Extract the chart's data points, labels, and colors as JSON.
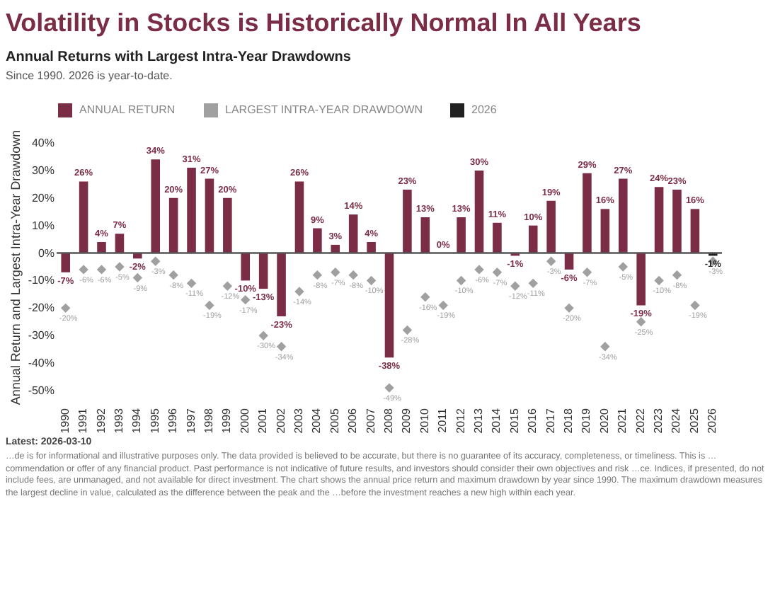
{
  "chart_data": {
    "type": "bar",
    "title": "Volatility in Stocks is Historically Normal In All Years",
    "subtitle": "Annual Returns with Largest Intra-Year Drawdowns",
    "ylabel": "Annual Return and Largest Intra-Year Drawdown",
    "annotations": [
      "Since 1990. 2026 is year-to-date.",
      "Latest: 2026-03-10",
      "…de is for informational and illustrative purposes only. The data provided is believed to be accurate, but there is no guarantee of its accuracy, completeness, or timeliness. This is …commendation or offer of any financial product. Past performance is not indicative of future results, and investors should consider their own objectives and risk …ce. Indices, if presented, do not include fees, are unmanaged, and not available for direct investment. The chart shows the annual price return and maximum drawdown by year since 1990. The maximum drawdown measures the largest decline in value, calculated as the difference between the peak and the …before the investment reaches a new high within each year."
    ],
    "categories": [
      "1990",
      "1991",
      "1992",
      "1993",
      "1994",
      "1995",
      "1996",
      "1997",
      "1998",
      "1999",
      "2000",
      "2001",
      "2002",
      "2003",
      "2004",
      "2005",
      "2006",
      "2007",
      "2008",
      "2009",
      "2010",
      "2011",
      "2012",
      "2013",
      "2014",
      "2015",
      "2016",
      "2017",
      "2018",
      "2019",
      "2020",
      "2021",
      "2022",
      "2023",
      "2024",
      "2025",
      "2026"
    ],
    "series": [
      {
        "name": "ANNUAL RETURN",
        "color": "#7b2d45",
        "values": [
          -7,
          26,
          4,
          7,
          -2,
          34,
          20,
          31,
          27,
          20,
          -10,
          -13,
          -23,
          26,
          9,
          3,
          14,
          4,
          -38,
          23,
          13,
          0,
          13,
          30,
          11,
          -1,
          10,
          19,
          -6,
          29,
          16,
          27,
          -19,
          24,
          23,
          16,
          null
        ],
        "value_labels": [
          "-7%",
          "26%",
          "4%",
          "7%",
          "-2%",
          "34%",
          "20%",
          "31%",
          "27%",
          "20%",
          "-10%",
          "-13%",
          "-23%",
          "26%",
          "9%",
          "3%",
          "14%",
          "4%",
          "-38%",
          "23%",
          "13%",
          "0%",
          "13%",
          "30%",
          "11%",
          "-1%",
          "10%",
          "19%",
          "-6%",
          "29%",
          "16%",
          "27%",
          "-19%",
          "24%",
          "23%",
          "16%",
          null
        ]
      },
      {
        "name": "LARGEST INTRA-YEAR DRAWDOWN",
        "type": "scatter",
        "color": "#a0a0a0",
        "values": [
          -20,
          -6,
          -6,
          -5,
          -9,
          -3,
          -8,
          -11,
          -19,
          -12,
          -17,
          -30,
          -34,
          -14,
          -8,
          -7,
          -8,
          -10,
          -49,
          -28,
          -16,
          -19,
          -10,
          -6,
          -7,
          -12,
          -11,
          -3,
          -20,
          -7,
          -34,
          -5,
          -25,
          -10,
          -8,
          -19,
          -3
        ],
        "value_labels": [
          "-20%",
          "-6%",
          "-6%",
          "-5%",
          "-9%",
          "-3%",
          "-8%",
          "-11%",
          "-19%",
          "-12%",
          "-17%",
          "-30%",
          "-34%",
          "-14%",
          "-8%",
          "-7%",
          "-8%",
          "-10%",
          "-49%",
          "-28%",
          "-16%",
          "-19%",
          "-10%",
          "-6%",
          "-7%",
          "-12%",
          "-11%",
          "-3%",
          "-20%",
          "-7%",
          "-34%",
          "-5%",
          "-25%",
          "-10%",
          "-8%",
          "-19%",
          "-3%"
        ]
      },
      {
        "name": "2026",
        "color": "#222222",
        "values": [
          null,
          null,
          null,
          null,
          null,
          null,
          null,
          null,
          null,
          null,
          null,
          null,
          null,
          null,
          null,
          null,
          null,
          null,
          null,
          null,
          null,
          null,
          null,
          null,
          null,
          null,
          null,
          null,
          null,
          null,
          null,
          null,
          null,
          null,
          null,
          null,
          -1
        ],
        "value_labels": [
          null,
          null,
          null,
          null,
          null,
          null,
          null,
          null,
          null,
          null,
          null,
          null,
          null,
          null,
          null,
          null,
          null,
          null,
          null,
          null,
          null,
          null,
          null,
          null,
          null,
          null,
          null,
          null,
          null,
          null,
          null,
          null,
          null,
          null,
          null,
          null,
          "-1%"
        ]
      }
    ],
    "ylim": [
      -50,
      40
    ],
    "yticks": [
      {
        "value": -50,
        "label": "-50%"
      },
      {
        "value": -40,
        "label": "-40%"
      },
      {
        "value": -30,
        "label": "-30%"
      },
      {
        "value": -20,
        "label": "-20%"
      },
      {
        "value": -10,
        "label": "-10%"
      },
      {
        "value": 0,
        "label": "0%"
      },
      {
        "value": 10,
        "label": "10%"
      },
      {
        "value": 20,
        "label": "20%"
      },
      {
        "value": 30,
        "label": "30%"
      },
      {
        "value": 40,
        "label": "40%"
      }
    ],
    "ref_lines": [
      {
        "axis": "y",
        "value": 0,
        "color": "#555555"
      }
    ],
    "marker": "diamond",
    "legend": "top",
    "grid": false
  }
}
